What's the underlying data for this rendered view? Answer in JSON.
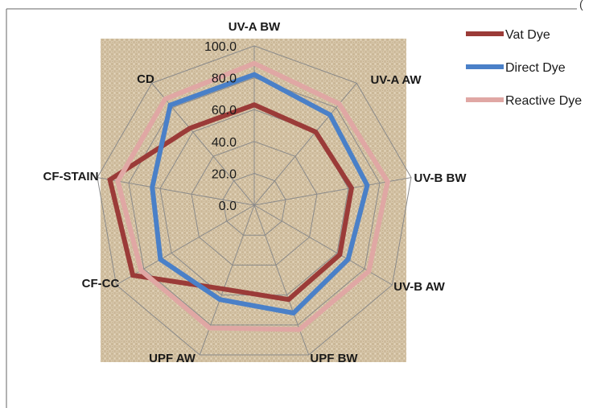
{
  "chart_data": {
    "type": "radar",
    "categories": [
      "UV-A  BW",
      "UV-A AW",
      "UV-B  BW",
      "UV-B AW",
      "UPF  BW",
      "UPF AW",
      "CF-CC",
      "CF-STAIN",
      "CD"
    ],
    "rlim": [
      0,
      100
    ],
    "ticks": [
      "0.0",
      "20.0",
      "40.0",
      "60.0",
      "80.0",
      "100.0"
    ],
    "tick_values": [
      0,
      20,
      40,
      60,
      80,
      100
    ],
    "series": [
      {
        "name": "Vat Dye",
        "color": "#9b3b38",
        "values": [
          63,
          60,
          62,
          62,
          63,
          56,
          88,
          92,
          63
        ]
      },
      {
        "name": "Direct Dye",
        "color": "#4a80c8",
        "values": [
          82,
          74,
          72,
          68,
          72,
          63,
          68,
          65,
          82
        ]
      },
      {
        "name": "Reactive Dye",
        "color": "#e0a7a4",
        "values": [
          89,
          83,
          85,
          83,
          83,
          82,
          82,
          87,
          87
        ]
      }
    ],
    "grid": true,
    "legend_position": "right",
    "background": "burlap-texture"
  },
  "page_corner_mark": "("
}
